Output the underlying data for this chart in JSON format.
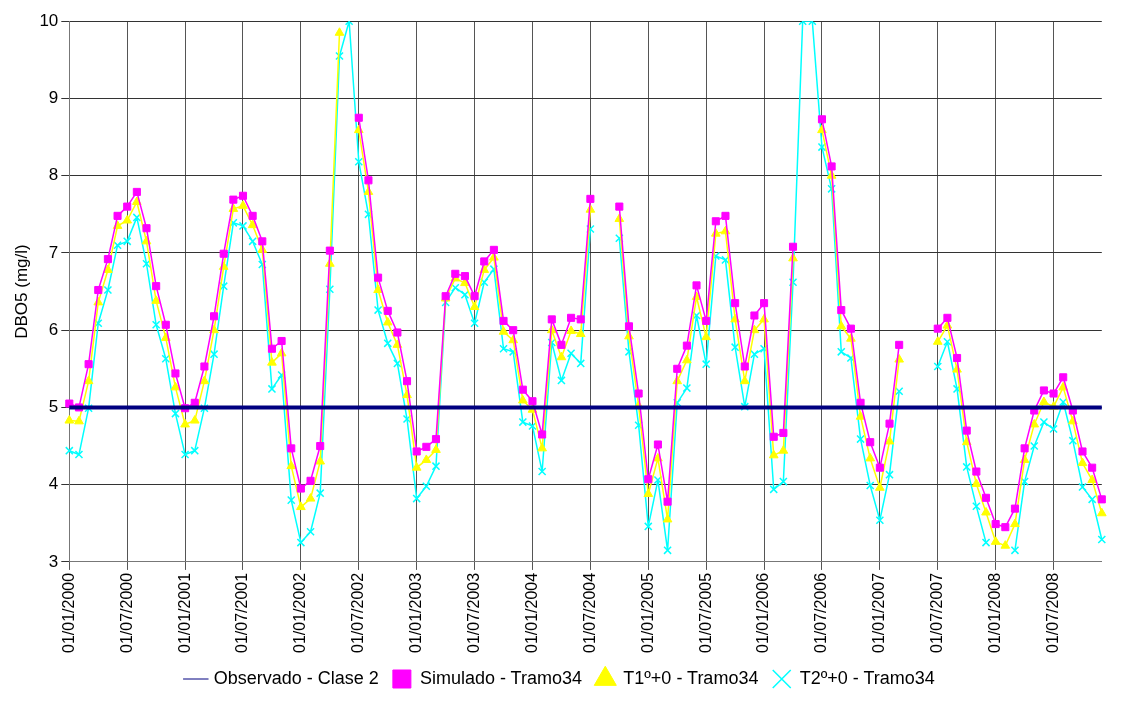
{
  "chart_data": {
    "type": "line",
    "ylabel": "DBO5 (mg/l)",
    "ylim": [
      3,
      10
    ],
    "yticks": [
      3,
      4,
      5,
      6,
      7,
      8,
      9,
      10
    ],
    "grid": true,
    "legend": "bottom",
    "categories": [
      "01/01/2000",
      null,
      null,
      null,
      null,
      null,
      "01/07/2000",
      null,
      null,
      null,
      null,
      null,
      "01/01/2001",
      null,
      null,
      null,
      null,
      null,
      "01/07/2001",
      null,
      null,
      null,
      null,
      null,
      "01/01/2002",
      null,
      null,
      null,
      null,
      null,
      "01/07/2002",
      null,
      null,
      null,
      null,
      null,
      "01/01/2003",
      null,
      null,
      null,
      null,
      null,
      "01/07/2003",
      null,
      null,
      null,
      null,
      null,
      "01/01/2004",
      null,
      null,
      null,
      null,
      null,
      "01/07/2004",
      null,
      null,
      null,
      null,
      null,
      "01/01/2005",
      null,
      null,
      null,
      null,
      null,
      "01/07/2005",
      null,
      null,
      null,
      null,
      null,
      "01/01/2006",
      null,
      null,
      null,
      null,
      null,
      "01/07/2006",
      null,
      null,
      null,
      null,
      null,
      "01/01/2007",
      null,
      null,
      null,
      null,
      null,
      "01/07/2007",
      null,
      null,
      null,
      null,
      null,
      "01/01/2008",
      null,
      null,
      null,
      null,
      null,
      "01/07/2008",
      null,
      null,
      null,
      null,
      null
    ],
    "series": [
      {
        "name": "Observado - Clase 2",
        "color": "#000080",
        "marker": "none",
        "values": [
          5,
          5,
          5,
          5,
          5,
          5,
          5,
          5,
          5,
          5,
          5,
          5,
          5,
          5,
          5,
          5,
          5,
          5,
          5,
          5,
          5,
          5,
          5,
          5,
          5,
          5,
          5,
          5,
          5,
          5,
          5,
          5,
          5,
          5,
          5,
          5,
          5,
          5,
          5,
          5,
          5,
          5,
          5,
          5,
          5,
          5,
          5,
          5,
          5,
          5,
          5,
          5,
          5,
          5,
          5,
          5,
          5,
          5,
          5,
          5,
          5,
          5,
          5,
          5,
          5,
          5,
          5,
          5,
          5,
          5,
          5,
          5,
          5,
          5,
          5,
          5,
          5,
          5,
          5,
          5,
          5,
          5,
          5,
          5,
          5,
          5,
          5,
          5,
          5,
          5,
          5,
          5,
          5,
          5,
          5,
          5,
          5,
          5,
          5,
          5,
          5,
          5,
          5,
          5,
          5,
          5,
          5,
          5
        ]
      },
      {
        "name": "Simulado - Tramo34",
        "color": "#ff00ff",
        "marker": "square",
        "values": [
          5.05,
          5.0,
          5.56,
          6.52,
          6.92,
          7.48,
          7.6,
          7.79,
          7.32,
          6.57,
          6.07,
          5.44,
          4.99,
          5.06,
          5.53,
          6.18,
          6.99,
          7.69,
          7.74,
          7.48,
          7.15,
          5.76,
          5.86,
          4.47,
          3.95,
          4.05,
          4.5,
          7.03,
          null,
          null,
          8.75,
          7.94,
          6.68,
          6.25,
          5.97,
          5.34,
          4.43,
          4.49,
          4.59,
          6.44,
          6.73,
          6.7,
          6.44,
          6.89,
          7.04,
          6.12,
          6.0,
          5.23,
          5.08,
          4.65,
          6.14,
          5.81,
          6.16,
          6.14,
          7.7,
          null,
          null,
          7.6,
          6.05,
          5.18,
          4.07,
          4.52,
          3.78,
          5.5,
          5.8,
          6.58,
          6.12,
          7.41,
          7.48,
          6.35,
          5.53,
          6.19,
          6.35,
          4.62,
          4.67,
          7.08,
          null,
          null,
          8.73,
          8.12,
          6.26,
          6.02,
          5.06,
          4.55,
          4.22,
          4.79,
          5.81,
          null,
          null,
          null,
          6.02,
          6.16,
          5.64,
          4.7,
          4.17,
          3.83,
          3.49,
          3.45,
          3.69,
          4.47,
          4.96,
          5.22,
          5.18,
          5.39,
          4.96,
          4.43,
          4.22,
          3.81
        ]
      },
      {
        "name": "T1º+0 - Tramo34",
        "color": "#ffff00",
        "marker": "triangle",
        "values": [
          4.83,
          4.82,
          5.34,
          6.36,
          6.78,
          7.35,
          7.42,
          7.66,
          7.15,
          6.38,
          5.9,
          5.26,
          4.78,
          4.83,
          5.34,
          6.0,
          6.82,
          7.57,
          7.61,
          7.36,
          7.04,
          5.58,
          5.7,
          4.24,
          3.71,
          3.82,
          4.3,
          6.86,
          9.85,
          null,
          8.59,
          7.79,
          6.52,
          6.1,
          5.81,
          5.16,
          4.22,
          4.32,
          4.45,
          6.41,
          6.67,
          6.61,
          6.3,
          6.78,
          6.94,
          5.98,
          5.87,
          5.09,
          4.97,
          4.47,
          6.0,
          5.65,
          5.99,
          5.95,
          7.56,
          null,
          null,
          7.44,
          5.92,
          5.02,
          3.88,
          4.34,
          3.55,
          5.34,
          5.61,
          6.43,
          5.91,
          7.25,
          7.28,
          6.14,
          5.34,
          6.0,
          6.14,
          4.38,
          4.44,
          6.93,
          null,
          null,
          8.59,
          8.0,
          6.05,
          5.89,
          4.88,
          4.34,
          3.96,
          4.56,
          5.62,
          null,
          null,
          null,
          5.85,
          6.06,
          5.49,
          4.55,
          4.01,
          3.64,
          3.26,
          3.21,
          3.49,
          4.32,
          4.78,
          5.07,
          5.01,
          5.26,
          4.82,
          4.28,
          4.06,
          3.63
        ]
      },
      {
        "name": "T2º+0 - Tramo34",
        "color": "#00ffff",
        "marker": "cross",
        "values": [
          4.44,
          4.39,
          4.99,
          6.09,
          6.52,
          7.1,
          7.15,
          7.46,
          6.86,
          6.07,
          5.63,
          4.92,
          4.39,
          4.44,
          4.99,
          5.69,
          6.57,
          7.39,
          7.35,
          7.15,
          6.85,
          5.24,
          5.42,
          3.8,
          3.25,
          3.39,
          3.89,
          6.53,
          9.55,
          10.0,
          8.18,
          7.5,
          6.26,
          5.83,
          5.57,
          4.85,
          3.82,
          3.98,
          4.24,
          6.36,
          6.55,
          6.46,
          6.09,
          6.62,
          6.79,
          5.76,
          5.72,
          4.81,
          4.76,
          4.17,
          5.84,
          5.35,
          5.7,
          5.57,
          7.31,
          null,
          null,
          7.19,
          5.72,
          4.77,
          3.46,
          4.06,
          3.15,
          5.06,
          5.25,
          6.19,
          5.56,
          6.96,
          6.91,
          5.78,
          5.01,
          5.69,
          5.76,
          3.94,
          4.04,
          6.62,
          10.0,
          10.0,
          8.37,
          7.83,
          5.72,
          5.64,
          4.59,
          3.99,
          3.54,
          4.13,
          5.21,
          null,
          null,
          null,
          5.53,
          5.85,
          5.24,
          4.23,
          3.72,
          3.25,
          null,
          null,
          3.15,
          4.04,
          4.5,
          4.81,
          4.72,
          5.07,
          4.57,
          3.97,
          3.81,
          3.29
        ]
      }
    ]
  }
}
